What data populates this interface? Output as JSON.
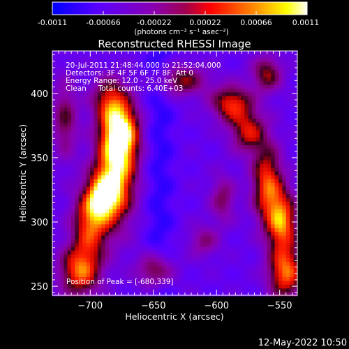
{
  "colorbar": {
    "tick_labels": [
      "-0.0011",
      "-0.00066",
      "-0.00022",
      "0.00022",
      "0.00066",
      "0.0011"
    ],
    "unit_label": "(photons cm⁻² s⁻¹ asec⁻²)",
    "range": [
      -0.0011,
      0.0011
    ],
    "colors": [
      "#0000ff",
      "#5a00ff",
      "#8a00b0",
      "#a00050",
      "#ff0000",
      "#ff8000",
      "#ffff00",
      "#ffffff"
    ]
  },
  "info": {
    "time_range": "20-Jul-2011 21:48:44.000 to 21:52:04.000",
    "detectors": "Detectors: 3F 4F 5F 6F 7F 8F, Att 0",
    "energy": "Energy Range: 12.0 - 25.0 keV",
    "clean": "Clean     Total counts: 6.40E+03",
    "peak": "Position of Peak = [-680,339]"
  },
  "footer": {
    "timestamp": "12-May-2022 10:50"
  },
  "chart_data": {
    "type": "heatmap",
    "title": "Reconstructed RHESSI Image",
    "xlabel": "Heliocentric X (arcsec)",
    "ylabel": "Heliocentric Y (arcsec)",
    "xlim": [
      -730,
      -536
    ],
    "ylim": [
      243,
      433
    ],
    "xticks": [
      -700,
      -650,
      -600,
      -550
    ],
    "yticks": [
      250,
      300,
      350,
      400
    ],
    "xtick_labels": [
      "−700",
      "−650",
      "−600",
      "−550"
    ],
    "ytick_labels": [
      "250",
      "300",
      "350",
      "400"
    ],
    "peak_position": [
      -680,
      339
    ],
    "value_range": [
      -0.0011,
      0.0011
    ],
    "colormap": "blue-purple-red-yellow-white",
    "grid": false
  }
}
